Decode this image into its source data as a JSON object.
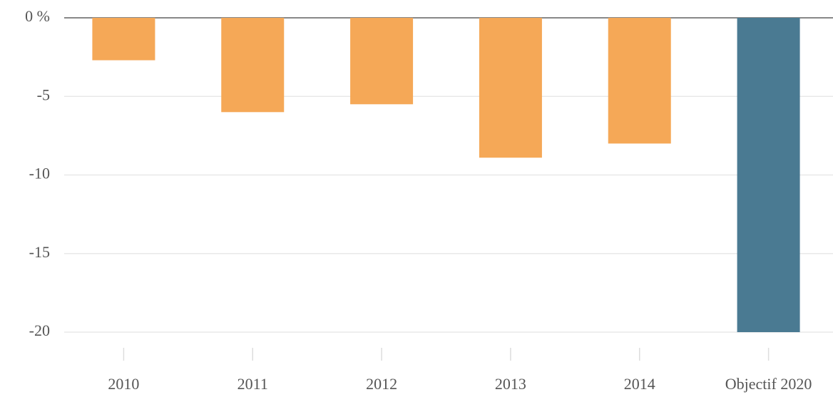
{
  "chart_data": {
    "type": "bar",
    "categories": [
      "2010",
      "2011",
      "2012",
      "2013",
      "2014",
      "Objectif 2020"
    ],
    "values": [
      -2.7,
      -6.0,
      -5.5,
      -8.9,
      -8.0,
      -20
    ],
    "colors": [
      "#f5a857",
      "#f5a857",
      "#f5a857",
      "#f5a857",
      "#f5a857",
      "#4a7a92"
    ],
    "ylim": [
      -20,
      0
    ],
    "yticks": [
      {
        "value": 0,
        "label": "0 %"
      },
      -5,
      -10,
      -15,
      -20
    ],
    "grid": true
  }
}
